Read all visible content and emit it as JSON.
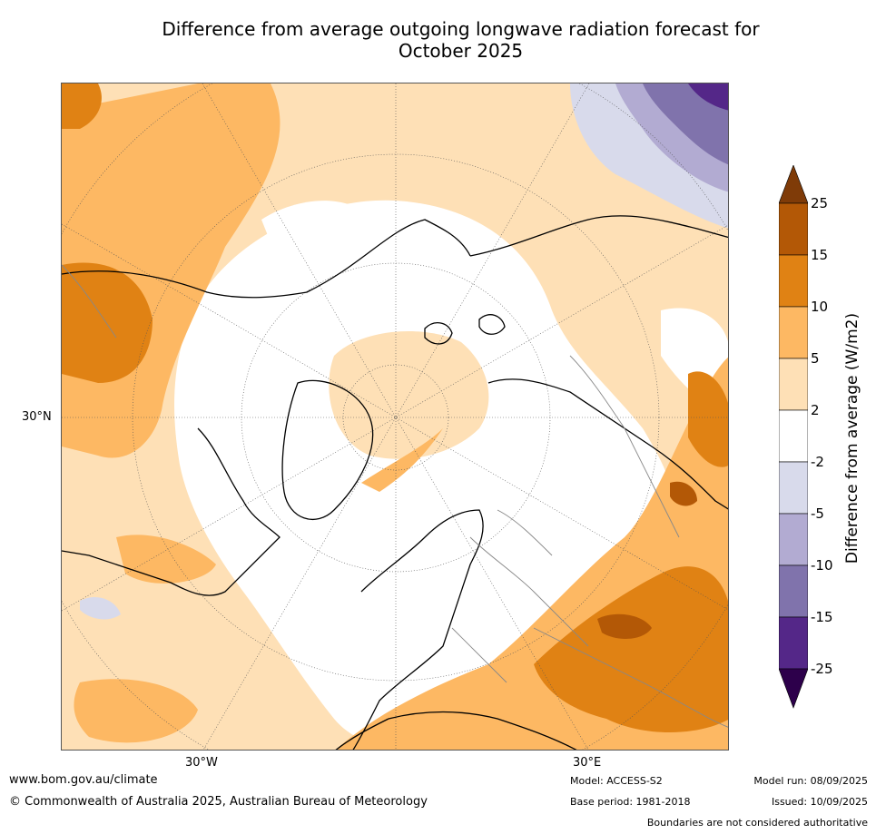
{
  "title_line1": "Difference from average outgoing longwave radiation forecast for",
  "title_line2": "October 2025",
  "map": {
    "lat_label": "30°N",
    "lon_labels": [
      "30°W",
      "30°E"
    ],
    "projection": "north polar stereographic",
    "colors": {
      "land_outline": "#000000",
      "borders": "#888888",
      "graticule": "#555555"
    }
  },
  "colorbar": {
    "label": "Difference from average (W/m2)",
    "ticks": [
      "25",
      "15",
      "10",
      "5",
      "2",
      "-2",
      "-5",
      "-10",
      "-15",
      "-25"
    ],
    "bins": [
      {
        "range": "above 25",
        "color": "#7f3b08"
      },
      {
        "range": "15 to 25",
        "color": "#b35806"
      },
      {
        "range": "10 to 15",
        "color": "#e08214"
      },
      {
        "range": "5 to 10",
        "color": "#fdb863"
      },
      {
        "range": "2 to 5",
        "color": "#fee0b6"
      },
      {
        "range": "-2 to 2",
        "color": "#ffffff"
      },
      {
        "range": "-5 to -2",
        "color": "#d8daeb"
      },
      {
        "range": "-10 to -5",
        "color": "#b2abd2"
      },
      {
        "range": "-15 to -10",
        "color": "#8073ac"
      },
      {
        "range": "-25 to -15",
        "color": "#542788"
      },
      {
        "range": "below -25",
        "color": "#2d004b"
      }
    ]
  },
  "footer": {
    "url": "www.bom.gov.au/climate",
    "copyright": "© Commonwealth of Australia 2025, Australian Bureau of Meteorology",
    "model": "Model: ACCESS-S2",
    "base_period": "Base period: 1981-2018",
    "model_run": "Model run: 08/09/2025",
    "issued": "Issued: 10/09/2025",
    "disclaimer": "Boundaries are not considered authoritative"
  }
}
